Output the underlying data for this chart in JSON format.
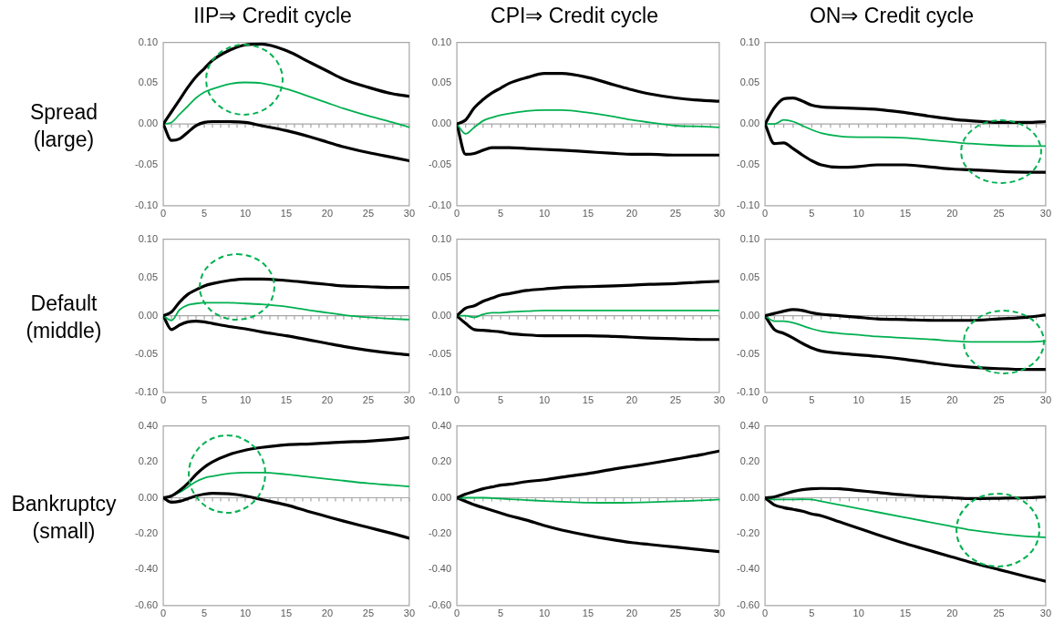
{
  "chart_data": [
    {
      "type": "line",
      "title": "IIP⇒ Credit cycle",
      "ylabel": "Spread (large)",
      "x": [
        0,
        1,
        2,
        3,
        4,
        5,
        6,
        8,
        10,
        12,
        15,
        18,
        20,
        22,
        25,
        28,
        30
      ],
      "series": [
        {
          "color": "#000000",
          "values": [
            0,
            0.015,
            0.03,
            0.045,
            0.058,
            0.068,
            0.078,
            0.09,
            0.097,
            0.098,
            0.09,
            0.075,
            0.065,
            0.055,
            0.045,
            0.037,
            0.034
          ]
        },
        {
          "color": "#00b050",
          "values": [
            0,
            0.002,
            0.012,
            0.022,
            0.032,
            0.039,
            0.043,
            0.049,
            0.051,
            0.05,
            0.043,
            0.033,
            0.026,
            0.019,
            0.01,
            0.002,
            -0.004
          ]
        },
        {
          "color": "#000000",
          "values": [
            0,
            -0.02,
            -0.018,
            -0.01,
            -0.002,
            0.002,
            0.003,
            0.003,
            0.002,
            -0.002,
            -0.008,
            -0.016,
            -0.022,
            -0.028,
            -0.035,
            -0.041,
            -0.045
          ]
        }
      ],
      "ref_lines": [
        {
          "axis": "y",
          "value": 0,
          "color": "#a6a6a6"
        }
      ],
      "xlim": [
        0,
        30
      ],
      "xticks": [
        0,
        5,
        10,
        15,
        20,
        25,
        30
      ],
      "ylim": [
        -0.1,
        0.1
      ],
      "yticks": [
        {
          "value": -0.1,
          "label": "-0.10"
        },
        {
          "value": -0.05,
          "label": "-0.05"
        },
        {
          "value": 0,
          "label": "0.00"
        },
        {
          "value": 0.05,
          "label": "0.05"
        },
        {
          "value": 0.1,
          "label": "0.10"
        }
      ],
      "grid": false,
      "legend": false,
      "marker": "none",
      "line_style": "solid"
    },
    {
      "type": "line",
      "title": "CPI⇒ Credit cycle",
      "x": [
        0,
        1,
        2,
        3,
        4,
        5,
        6,
        8,
        10,
        12,
        15,
        18,
        20,
        22,
        25,
        28,
        30
      ],
      "series": [
        {
          "color": "#000000",
          "values": [
            0,
            0.005,
            0.02,
            0.03,
            0.038,
            0.044,
            0.05,
            0.057,
            0.062,
            0.062,
            0.057,
            0.048,
            0.042,
            0.037,
            0.032,
            0.029,
            0.028
          ]
        },
        {
          "color": "#00b050",
          "values": [
            0,
            -0.012,
            -0.004,
            0.004,
            0.008,
            0.011,
            0.013,
            0.016,
            0.017,
            0.017,
            0.014,
            0.009,
            0.005,
            0.002,
            -0.002,
            -0.003,
            -0.004
          ]
        },
        {
          "color": "#000000",
          "values": [
            0,
            -0.037,
            -0.036,
            -0.032,
            -0.029,
            -0.029,
            -0.029,
            -0.03,
            -0.031,
            -0.032,
            -0.034,
            -0.036,
            -0.037,
            -0.037,
            -0.038,
            -0.038,
            -0.038
          ]
        }
      ],
      "ref_lines": [
        {
          "axis": "y",
          "value": 0,
          "color": "#a6a6a6"
        }
      ],
      "xlim": [
        0,
        30
      ],
      "xticks": [
        0,
        5,
        10,
        15,
        20,
        25,
        30
      ],
      "ylim": [
        -0.1,
        0.1
      ],
      "yticks": [
        {
          "value": -0.1,
          "label": "-0.10"
        },
        {
          "value": -0.05,
          "label": "-0.05"
        },
        {
          "value": 0,
          "label": "0.00"
        },
        {
          "value": 0.05,
          "label": "0.05"
        },
        {
          "value": 0.1,
          "label": "0.10"
        }
      ],
      "grid": false,
      "legend": false,
      "marker": "none",
      "line_style": "solid"
    },
    {
      "type": "line",
      "title": "ON⇒ Credit cycle",
      "x": [
        0,
        1,
        2,
        3,
        4,
        5,
        6,
        8,
        10,
        12,
        15,
        18,
        20,
        22,
        25,
        28,
        30
      ],
      "series": [
        {
          "color": "#000000",
          "values": [
            0,
            0.02,
            0.031,
            0.032,
            0.028,
            0.023,
            0.021,
            0.02,
            0.019,
            0.018,
            0.014,
            0.009,
            0.006,
            0.004,
            0.002,
            0.002,
            0.003
          ]
        },
        {
          "color": "#00b050",
          "values": [
            0,
            0,
            0.005,
            0.003,
            -0.002,
            -0.007,
            -0.011,
            -0.015,
            -0.016,
            -0.016,
            -0.017,
            -0.02,
            -0.022,
            -0.024,
            -0.026,
            -0.027,
            -0.027
          ]
        },
        {
          "color": "#000000",
          "values": [
            0,
            -0.024,
            -0.023,
            -0.03,
            -0.038,
            -0.045,
            -0.05,
            -0.053,
            -0.052,
            -0.05,
            -0.05,
            -0.053,
            -0.055,
            -0.056,
            -0.058,
            -0.059,
            -0.059
          ]
        }
      ],
      "ref_lines": [
        {
          "axis": "y",
          "value": 0,
          "color": "#a6a6a6"
        }
      ],
      "xlim": [
        0,
        30
      ],
      "xticks": [
        0,
        5,
        10,
        15,
        20,
        25,
        30
      ],
      "ylim": [
        -0.1,
        0.1
      ],
      "yticks": [
        {
          "value": -0.1,
          "label": "-0.10"
        },
        {
          "value": -0.05,
          "label": "-0.05"
        },
        {
          "value": 0,
          "label": "0.00"
        },
        {
          "value": 0.05,
          "label": "0.05"
        },
        {
          "value": 0.1,
          "label": "0.10"
        }
      ],
      "grid": false,
      "legend": false,
      "marker": "none",
      "line_style": "solid"
    },
    {
      "type": "line",
      "ylabel": "Default (middle)",
      "x": [
        0,
        1,
        2,
        3,
        4,
        5,
        6,
        8,
        10,
        12,
        15,
        18,
        20,
        22,
        25,
        28,
        30
      ],
      "series": [
        {
          "color": "#000000",
          "values": [
            0,
            0.005,
            0.018,
            0.028,
            0.034,
            0.039,
            0.042,
            0.046,
            0.048,
            0.048,
            0.046,
            0.043,
            0.041,
            0.039,
            0.038,
            0.037,
            0.037
          ]
        },
        {
          "color": "#00b050",
          "values": [
            0,
            -0.006,
            0.008,
            0.014,
            0.016,
            0.017,
            0.017,
            0.017,
            0.016,
            0.015,
            0.012,
            0.007,
            0.004,
            0.001,
            -0.002,
            -0.004,
            -0.005
          ]
        },
        {
          "color": "#000000",
          "values": [
            0,
            -0.018,
            -0.012,
            -0.008,
            -0.007,
            -0.008,
            -0.01,
            -0.014,
            -0.017,
            -0.021,
            -0.026,
            -0.032,
            -0.036,
            -0.04,
            -0.045,
            -0.049,
            -0.051
          ]
        }
      ],
      "ref_lines": [
        {
          "axis": "y",
          "value": 0,
          "color": "#a6a6a6"
        }
      ],
      "xlim": [
        0,
        30
      ],
      "xticks": [
        0,
        5,
        10,
        15,
        20,
        25,
        30
      ],
      "ylim": [
        -0.1,
        0.1
      ],
      "yticks": [
        {
          "value": -0.1,
          "label": "-0.10"
        },
        {
          "value": -0.05,
          "label": "-0.05"
        },
        {
          "value": 0,
          "label": "0.00"
        },
        {
          "value": 0.05,
          "label": "0.05"
        },
        {
          "value": 0.1,
          "label": "0.10"
        }
      ],
      "grid": false,
      "legend": false,
      "marker": "none",
      "line_style": "solid"
    },
    {
      "type": "line",
      "x": [
        0,
        1,
        2,
        3,
        4,
        5,
        6,
        8,
        10,
        12,
        15,
        18,
        20,
        22,
        25,
        28,
        30
      ],
      "series": [
        {
          "color": "#000000",
          "values": [
            0,
            0.01,
            0.013,
            0.019,
            0.023,
            0.027,
            0.029,
            0.033,
            0.035,
            0.037,
            0.038,
            0.039,
            0.04,
            0.041,
            0.042,
            0.044,
            0.045
          ]
        },
        {
          "color": "#00b050",
          "values": [
            0,
            0,
            -0.002,
            0.002,
            0.004,
            0.004,
            0.005,
            0.006,
            0.007,
            0.007,
            0.007,
            0.007,
            0.007,
            0.007,
            0.007,
            0.007,
            0.007
          ]
        },
        {
          "color": "#000000",
          "values": [
            0,
            -0.01,
            -0.018,
            -0.019,
            -0.02,
            -0.021,
            -0.023,
            -0.025,
            -0.026,
            -0.026,
            -0.026,
            -0.027,
            -0.028,
            -0.029,
            -0.03,
            -0.031,
            -0.031
          ]
        }
      ],
      "ref_lines": [
        {
          "axis": "y",
          "value": 0,
          "color": "#a6a6a6"
        }
      ],
      "xlim": [
        0,
        30
      ],
      "xticks": [
        0,
        5,
        10,
        15,
        20,
        25,
        30
      ],
      "ylim": [
        -0.1,
        0.1
      ],
      "yticks": [
        {
          "value": -0.1,
          "label": "-0.10"
        },
        {
          "value": -0.05,
          "label": "-0.05"
        },
        {
          "value": 0,
          "label": "0.00"
        },
        {
          "value": 0.05,
          "label": "0.05"
        },
        {
          "value": 0.1,
          "label": "0.10"
        }
      ],
      "grid": false,
      "legend": false,
      "marker": "none",
      "line_style": "solid"
    },
    {
      "type": "line",
      "x": [
        0,
        1,
        2,
        3,
        4,
        5,
        6,
        8,
        10,
        12,
        15,
        18,
        20,
        22,
        25,
        28,
        30
      ],
      "series": [
        {
          "color": "#000000",
          "values": [
            0,
            0.003,
            0.006,
            0.008,
            0.007,
            0.004,
            0.002,
            0,
            -0.002,
            -0.004,
            -0.005,
            -0.006,
            -0.006,
            -0.006,
            -0.004,
            -0.002,
            0.001
          ]
        },
        {
          "color": "#00b050",
          "values": [
            0,
            -0.007,
            -0.007,
            -0.009,
            -0.013,
            -0.017,
            -0.02,
            -0.023,
            -0.025,
            -0.027,
            -0.029,
            -0.031,
            -0.033,
            -0.034,
            -0.034,
            -0.034,
            -0.033
          ]
        },
        {
          "color": "#000000",
          "values": [
            0,
            -0.018,
            -0.023,
            -0.029,
            -0.036,
            -0.042,
            -0.046,
            -0.049,
            -0.051,
            -0.053,
            -0.057,
            -0.062,
            -0.065,
            -0.067,
            -0.069,
            -0.07,
            -0.07
          ]
        }
      ],
      "ref_lines": [
        {
          "axis": "y",
          "value": 0,
          "color": "#a6a6a6"
        }
      ],
      "xlim": [
        0,
        30
      ],
      "xticks": [
        0,
        5,
        10,
        15,
        20,
        25,
        30
      ],
      "ylim": [
        -0.1,
        0.1
      ],
      "yticks": [
        {
          "value": -0.1,
          "label": "-0.10"
        },
        {
          "value": -0.05,
          "label": "-0.05"
        },
        {
          "value": 0,
          "label": "0.00"
        },
        {
          "value": 0.05,
          "label": "0.05"
        },
        {
          "value": 0.1,
          "label": "0.10"
        }
      ],
      "grid": false,
      "legend": false,
      "marker": "none",
      "line_style": "solid"
    },
    {
      "type": "line",
      "ylabel": "Bankruptcy (small)",
      "x": [
        0,
        1,
        2,
        3,
        4,
        5,
        6,
        8,
        10,
        12,
        15,
        18,
        20,
        22,
        25,
        28,
        30
      ],
      "series": [
        {
          "color": "#000000",
          "values": [
            0,
            0.01,
            0.04,
            0.08,
            0.13,
            0.17,
            0.2,
            0.24,
            0.265,
            0.28,
            0.295,
            0.3,
            0.305,
            0.31,
            0.315,
            0.325,
            0.335
          ]
        },
        {
          "color": "#00b050",
          "values": [
            0,
            0.01,
            0.03,
            0.06,
            0.09,
            0.11,
            0.12,
            0.135,
            0.14,
            0.14,
            0.13,
            0.115,
            0.105,
            0.095,
            0.08,
            0.07,
            0.063
          ]
        },
        {
          "color": "#000000",
          "values": [
            0,
            -0.025,
            -0.02,
            -0.005,
            0.01,
            0.02,
            0.025,
            0.022,
            0.01,
            -0.01,
            -0.04,
            -0.08,
            -0.105,
            -0.13,
            -0.165,
            -0.2,
            -0.225
          ]
        }
      ],
      "ref_lines": [
        {
          "axis": "y",
          "value": 0,
          "color": "#a6a6a6"
        }
      ],
      "xlim": [
        0,
        30
      ],
      "xticks": [
        0,
        5,
        10,
        15,
        20,
        25,
        30
      ],
      "ylim": [
        -0.6,
        0.4
      ],
      "yticks": [
        {
          "value": -0.6,
          "label": "-0.60"
        },
        {
          "value": -0.4,
          "label": "-0.40"
        },
        {
          "value": -0.2,
          "label": "-0.20"
        },
        {
          "value": 0,
          "label": "0.00"
        },
        {
          "value": 0.2,
          "label": "0.20"
        },
        {
          "value": 0.4,
          "label": "0.40"
        }
      ],
      "grid": false,
      "legend": false,
      "marker": "none",
      "line_style": "solid"
    },
    {
      "type": "line",
      "x": [
        0,
        1,
        2,
        3,
        4,
        5,
        6,
        8,
        10,
        12,
        15,
        18,
        20,
        22,
        25,
        28,
        30
      ],
      "series": [
        {
          "color": "#000000",
          "values": [
            0,
            0.02,
            0.035,
            0.05,
            0.06,
            0.07,
            0.075,
            0.09,
            0.1,
            0.115,
            0.135,
            0.16,
            0.175,
            0.19,
            0.215,
            0.24,
            0.26
          ]
        },
        {
          "color": "#00b050",
          "values": [
            0,
            0,
            0,
            0,
            -0.002,
            -0.005,
            -0.008,
            -0.013,
            -0.018,
            -0.022,
            -0.027,
            -0.028,
            -0.027,
            -0.025,
            -0.02,
            -0.015,
            -0.01
          ]
        },
        {
          "color": "#000000",
          "values": [
            0,
            -0.02,
            -0.04,
            -0.055,
            -0.07,
            -0.085,
            -0.1,
            -0.125,
            -0.155,
            -0.18,
            -0.21,
            -0.235,
            -0.25,
            -0.26,
            -0.275,
            -0.29,
            -0.3
          ]
        }
      ],
      "ref_lines": [
        {
          "axis": "y",
          "value": 0,
          "color": "#a6a6a6"
        }
      ],
      "xlim": [
        0,
        30
      ],
      "xticks": [
        0,
        5,
        10,
        15,
        20,
        25,
        30
      ],
      "ylim": [
        -0.6,
        0.4
      ],
      "yticks": [
        {
          "value": -0.6,
          "label": "-0.60"
        },
        {
          "value": -0.4,
          "label": "-0.40"
        },
        {
          "value": -0.2,
          "label": "-0.20"
        },
        {
          "value": 0,
          "label": "0.00"
        },
        {
          "value": 0.2,
          "label": "0.20"
        },
        {
          "value": 0.4,
          "label": "0.40"
        }
      ],
      "grid": false,
      "legend": false,
      "marker": "none",
      "line_style": "solid"
    },
    {
      "type": "line",
      "x": [
        0,
        1,
        2,
        3,
        4,
        5,
        6,
        8,
        10,
        12,
        15,
        18,
        20,
        22,
        25,
        28,
        30
      ],
      "series": [
        {
          "color": "#000000",
          "values": [
            0,
            0.005,
            0.02,
            0.035,
            0.045,
            0.05,
            0.052,
            0.05,
            0.04,
            0.03,
            0.015,
            0.005,
            0,
            -0.005,
            -0.003,
            0,
            0.005
          ]
        },
        {
          "color": "#00b050",
          "values": [
            0,
            -0.01,
            -0.01,
            -0.01,
            -0.008,
            -0.01,
            -0.02,
            -0.04,
            -0.06,
            -0.08,
            -0.11,
            -0.14,
            -0.16,
            -0.18,
            -0.2,
            -0.215,
            -0.22
          ]
        },
        {
          "color": "#000000",
          "values": [
            0,
            -0.04,
            -0.055,
            -0.065,
            -0.075,
            -0.09,
            -0.1,
            -0.135,
            -0.17,
            -0.205,
            -0.255,
            -0.3,
            -0.33,
            -0.36,
            -0.4,
            -0.44,
            -0.465
          ]
        }
      ],
      "ref_lines": [
        {
          "axis": "y",
          "value": 0,
          "color": "#a6a6a6"
        }
      ],
      "xlim": [
        0,
        30
      ],
      "xticks": [
        0,
        5,
        10,
        15,
        20,
        25,
        30
      ],
      "ylim": [
        -0.6,
        0.4
      ],
      "yticks": [
        {
          "value": -0.6,
          "label": "-0.60"
        },
        {
          "value": -0.4,
          "label": "-0.40"
        },
        {
          "value": -0.2,
          "label": "-0.20"
        },
        {
          "value": 0,
          "label": "0.00"
        },
        {
          "value": 0.2,
          "label": "0.20"
        },
        {
          "value": 0.4,
          "label": "0.40"
        }
      ],
      "grid": false,
      "legend": false,
      "marker": "none",
      "line_style": "solid"
    }
  ]
}
